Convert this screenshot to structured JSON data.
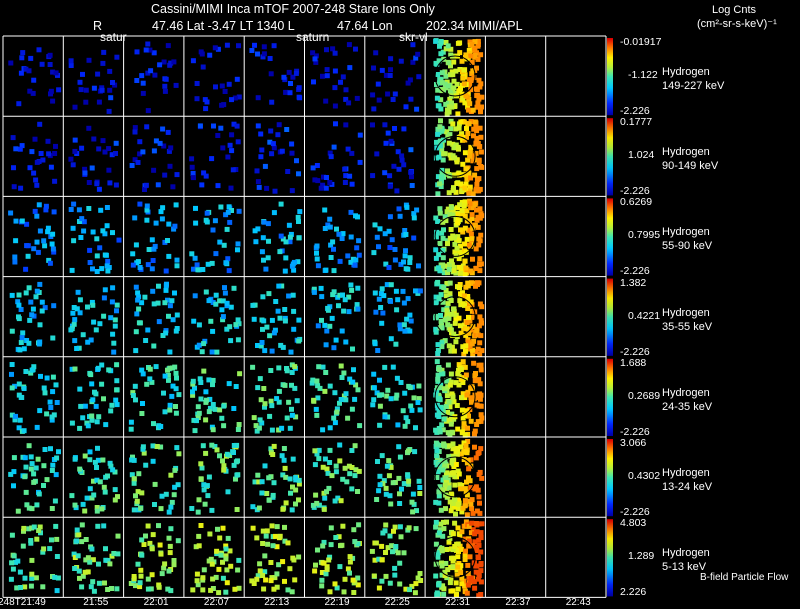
{
  "header": {
    "title": "Cassini/MIMI Inca mTOF  2007-248   Stare   Ions Only",
    "r_label": "R",
    "position": "47.46 Lat -3.47 LT 1340 L",
    "lon": "47.64 Lon",
    "mimi": "202.34  MIMI/APL",
    "annotations": [
      "satur",
      "saturn",
      "skr-vl"
    ],
    "units_line1": "Log Cnts",
    "units_line2": "(cm²-sr-s-keV)⁻¹"
  },
  "footer": {
    "flow_label": "B-field Particle Flow"
  },
  "colors": {
    "background": "#000000",
    "grid": "#ffffff",
    "spectrum": "rainbow blue-cyan-green-yellow-red"
  },
  "chart_data": {
    "type": "heatmap",
    "title": "Cassini/MIMI Inca mTOF  2007-248   Stare   Ions Only",
    "times": [
      "248T21:49",
      "21:55",
      "22:01",
      "22:07",
      "22:13",
      "22:19",
      "22:25",
      "22:31",
      "22:37",
      "22:43"
    ],
    "rows": [
      {
        "species": "Hydrogen",
        "energy": "149-227 keV",
        "cb_max": "-0.01917",
        "cb_mid": "-1.122",
        "cb_min": "-2.226",
        "intensity": [
          0.05,
          0.06,
          0.06,
          0.06,
          0.06,
          0.06,
          0.07,
          0.8,
          null,
          null
        ]
      },
      {
        "species": "Hydrogen",
        "energy": "90-149 keV",
        "cb_max": "0.1777",
        "cb_mid": "1.024",
        "cb_min": "-2.226",
        "intensity": [
          0.08,
          0.09,
          0.09,
          0.09,
          0.1,
          0.1,
          0.1,
          0.8,
          null,
          null
        ]
      },
      {
        "species": "Hydrogen",
        "energy": "55-90 keV",
        "cb_max": "0.6269",
        "cb_mid": "0.7995",
        "cb_min": "-2.226",
        "intensity": [
          0.28,
          0.3,
          0.3,
          0.32,
          0.33,
          0.33,
          0.3,
          0.8,
          null,
          null
        ]
      },
      {
        "species": "Hydrogen",
        "energy": "35-55 keV",
        "cb_max": "1.382",
        "cb_mid": "0.4221",
        "cb_min": "-2.226",
        "intensity": [
          0.35,
          0.36,
          0.37,
          0.38,
          0.38,
          0.38,
          0.36,
          0.8,
          null,
          null
        ]
      },
      {
        "species": "Hydrogen",
        "energy": "24-35 keV",
        "cb_max": "1.688",
        "cb_mid": "0.2689",
        "cb_min": "-2.226",
        "intensity": [
          0.4,
          0.42,
          0.45,
          0.47,
          0.47,
          0.47,
          0.45,
          0.8,
          null,
          null
        ]
      },
      {
        "species": "Hydrogen",
        "energy": "13-24 keV",
        "cb_max": "3.066",
        "cb_mid": "0.4302",
        "cb_min": "-2.226",
        "intensity": [
          0.45,
          0.47,
          0.5,
          0.52,
          0.52,
          0.52,
          0.5,
          0.85,
          null,
          null
        ]
      },
      {
        "species": "Hydrogen",
        "energy": "5-13 keV",
        "cb_max": "4.803",
        "cb_mid": "1.289",
        "cb_min": "2.226",
        "intensity": [
          0.5,
          0.55,
          0.58,
          0.6,
          0.6,
          0.6,
          0.58,
          0.9,
          null,
          null
        ]
      }
    ],
    "grid": "on",
    "colorbar": "right"
  }
}
